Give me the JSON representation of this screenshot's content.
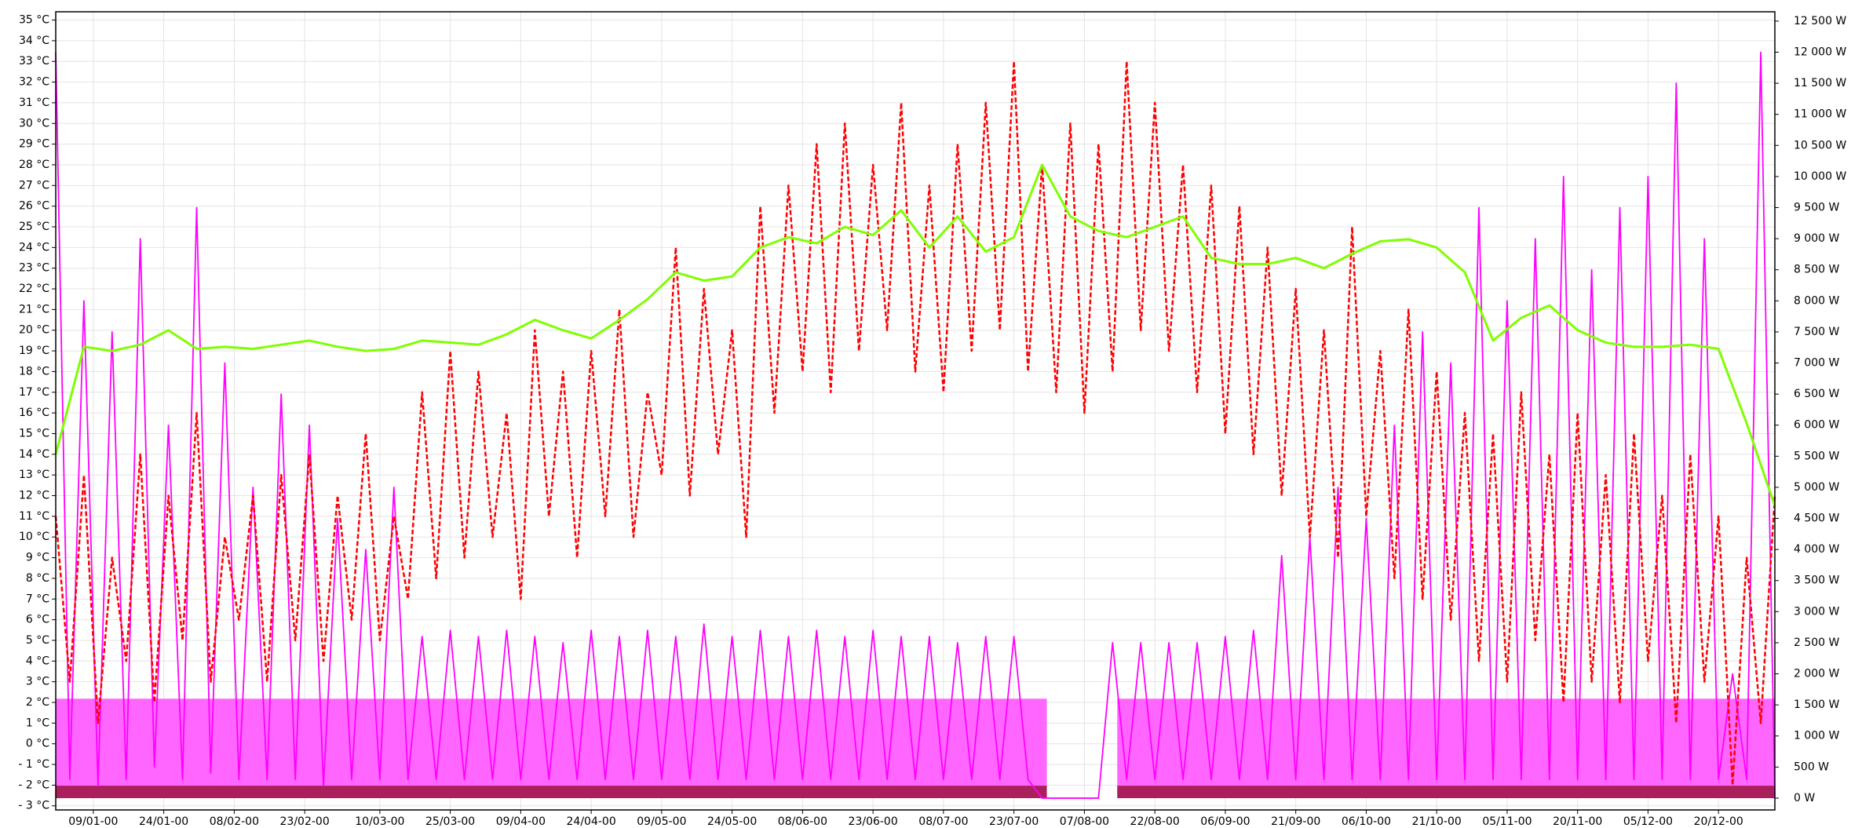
{
  "chart_data": {
    "type": "line",
    "xlim": [
      1,
      367
    ],
    "xticks": [
      {
        "value": 9,
        "label": "09/01-00"
      },
      {
        "value": 24,
        "label": "24/01-00"
      },
      {
        "value": 39,
        "label": "08/02-00"
      },
      {
        "value": 54,
        "label": "23/02-00"
      },
      {
        "value": 70,
        "label": "10/03-00"
      },
      {
        "value": 85,
        "label": "25/03-00"
      },
      {
        "value": 100,
        "label": "09/04-00"
      },
      {
        "value": 115,
        "label": "24/04-00"
      },
      {
        "value": 130,
        "label": "09/05-00"
      },
      {
        "value": 145,
        "label": "24/05-00"
      },
      {
        "value": 160,
        "label": "08/06-00"
      },
      {
        "value": 175,
        "label": "23/06-00"
      },
      {
        "value": 190,
        "label": "08/07-00"
      },
      {
        "value": 205,
        "label": "23/07-00"
      },
      {
        "value": 220,
        "label": "07/08-00"
      },
      {
        "value": 235,
        "label": "22/08-00"
      },
      {
        "value": 250,
        "label": "06/09-00"
      },
      {
        "value": 265,
        "label": "21/09-00"
      },
      {
        "value": 280,
        "label": "06/10-00"
      },
      {
        "value": 295,
        "label": "21/10-00"
      },
      {
        "value": 310,
        "label": "05/11-00"
      },
      {
        "value": 325,
        "label": "20/11-00"
      },
      {
        "value": 340,
        "label": "05/12-00"
      },
      {
        "value": 355,
        "label": "20/12-00"
      }
    ],
    "ylim": [
      -3.2,
      35.4
    ],
    "yticks": [
      {
        "value": -3,
        "label": "- 3 °C"
      },
      {
        "value": -2,
        "label": "- 2 °C"
      },
      {
        "value": -1,
        "label": "- 1 °C"
      },
      {
        "value": 0,
        "label": "0 °C"
      },
      {
        "value": 1,
        "label": "1 °C"
      },
      {
        "value": 2,
        "label": "2 °C"
      },
      {
        "value": 3,
        "label": "3 °C"
      },
      {
        "value": 4,
        "label": "4 °C"
      },
      {
        "value": 5,
        "label": "5 °C"
      },
      {
        "value": 6,
        "label": "6 °C"
      },
      {
        "value": 7,
        "label": "7 °C"
      },
      {
        "value": 8,
        "label": "8 °C"
      },
      {
        "value": 9,
        "label": "9 °C"
      },
      {
        "value": 10,
        "label": "10 °C"
      },
      {
        "value": 11,
        "label": "11 °C"
      },
      {
        "value": 12,
        "label": "12 °C"
      },
      {
        "value": 13,
        "label": "13 °C"
      },
      {
        "value": 14,
        "label": "14 °C"
      },
      {
        "value": 15,
        "label": "15 °C"
      },
      {
        "value": 16,
        "label": "16 °C"
      },
      {
        "value": 17,
        "label": "17 °C"
      },
      {
        "value": 18,
        "label": "18 °C"
      },
      {
        "value": 19,
        "label": "19 °C"
      },
      {
        "value": 20,
        "label": "20 °C"
      },
      {
        "value": 21,
        "label": "21 °C"
      },
      {
        "value": 22,
        "label": "22 °C"
      },
      {
        "value": 23,
        "label": "23 °C"
      },
      {
        "value": 24,
        "label": "24 °C"
      },
      {
        "value": 25,
        "label": "25 °C"
      },
      {
        "value": 26,
        "label": "26 °C"
      },
      {
        "value": 27,
        "label": "27 °C"
      },
      {
        "value": 28,
        "label": "28 °C"
      },
      {
        "value": 29,
        "label": "29 °C"
      },
      {
        "value": 30,
        "label": "30 °C"
      },
      {
        "value": 31,
        "label": "31 °C"
      },
      {
        "value": 32,
        "label": "32 °C"
      },
      {
        "value": 33,
        "label": "33 °C"
      },
      {
        "value": 34,
        "label": "34 °C"
      },
      {
        "value": 35,
        "label": "35 °C"
      }
    ],
    "y2lim": [
      -190,
      12650
    ],
    "y2ticks": [
      {
        "value": 0,
        "label": "0 W"
      },
      {
        "value": 500,
        "label": "500 W"
      },
      {
        "value": 1000,
        "label": "1 000 W"
      },
      {
        "value": 1500,
        "label": "1 500 W"
      },
      {
        "value": 2000,
        "label": "2 000 W"
      },
      {
        "value": 2500,
        "label": "2 500 W"
      },
      {
        "value": 3000,
        "label": "3 000 W"
      },
      {
        "value": 3500,
        "label": "3 500 W"
      },
      {
        "value": 4000,
        "label": "4 000 W"
      },
      {
        "value": 4500,
        "label": "4 500 W"
      },
      {
        "value": 5000,
        "label": "5 000 W"
      },
      {
        "value": 5500,
        "label": "5 500 W"
      },
      {
        "value": 6000,
        "label": "6 000 W"
      },
      {
        "value": 6500,
        "label": "6 500 W"
      },
      {
        "value": 7000,
        "label": "7 000 W"
      },
      {
        "value": 7500,
        "label": "7 500 W"
      },
      {
        "value": 8000,
        "label": "8 000 W"
      },
      {
        "value": 8500,
        "label": "8 500 W"
      },
      {
        "value": 9000,
        "label": "9 000 W"
      },
      {
        "value": 9500,
        "label": "9 500 W"
      },
      {
        "value": 10000,
        "label": "10 000 W"
      },
      {
        "value": 10500,
        "label": "10 500 W"
      },
      {
        "value": 11000,
        "label": "11 000 W"
      },
      {
        "value": 11500,
        "label": "11 500 W"
      },
      {
        "value": 12000,
        "label": "12 000 W"
      },
      {
        "value": 12500,
        "label": "12 500 W"
      }
    ],
    "grid": true,
    "x": [
      1,
      4,
      7,
      10,
      13,
      16,
      19,
      22,
      25,
      28,
      31,
      34,
      37,
      40,
      43,
      46,
      49,
      52,
      55,
      58,
      61,
      64,
      67,
      70,
      73,
      76,
      79,
      82,
      85,
      88,
      91,
      94,
      97,
      100,
      103,
      106,
      109,
      112,
      115,
      118,
      121,
      124,
      127,
      130,
      133,
      136,
      139,
      142,
      145,
      148,
      151,
      154,
      157,
      160,
      163,
      166,
      169,
      172,
      175,
      178,
      181,
      184,
      187,
      190,
      193,
      196,
      199,
      202,
      205,
      208,
      211,
      214,
      217,
      220,
      223,
      226,
      229,
      232,
      235,
      238,
      241,
      244,
      247,
      250,
      253,
      256,
      259,
      262,
      265,
      268,
      271,
      274,
      277,
      280,
      283,
      286,
      289,
      292,
      295,
      298,
      301,
      304,
      307,
      310,
      313,
      316,
      319,
      322,
      325,
      328,
      331,
      334,
      337,
      340,
      343,
      346,
      349,
      352,
      355,
      358,
      361,
      364,
      367
    ],
    "series": [
      {
        "color": "#ff55ff",
        "axis": "y2",
        "fill": true,
        "x": [
          1,
          212,
          220,
          227,
          367
        ],
        "values": [
          1600,
          1600,
          null,
          1600,
          1600
        ]
      },
      {
        "color": "#a0184a",
        "axis": "y2",
        "fill": true,
        "x": [
          1,
          212,
          220,
          227,
          367
        ],
        "values": [
          200,
          200,
          null,
          200,
          200
        ]
      },
      {
        "color": "#ff00ff",
        "axis": "y2",
        "values": [
          12000,
          300,
          8000,
          200,
          7500,
          300,
          9000,
          500,
          6000,
          300,
          9500,
          400,
          7000,
          300,
          5000,
          300,
          6500,
          300,
          6000,
          200,
          4500,
          300,
          4000,
          300,
          5000,
          300,
          2600,
          300,
          2700,
          300,
          2600,
          300,
          2700,
          300,
          2600,
          300,
          2500,
          300,
          2700,
          300,
          2600,
          300,
          2700,
          300,
          2600,
          300,
          2800,
          300,
          2600,
          300,
          2700,
          300,
          2600,
          300,
          2700,
          300,
          2600,
          300,
          2700,
          300,
          2600,
          300,
          2600,
          300,
          2500,
          300,
          2600,
          300,
          2600,
          300,
          0,
          0,
          0,
          0,
          0,
          2500,
          300,
          2500,
          300,
          2500,
          300,
          2500,
          300,
          2600,
          300,
          2700,
          300,
          3900,
          300,
          4200,
          300,
          5000,
          300,
          4500,
          300,
          6000,
          300,
          7500,
          300,
          7000,
          300,
          9500,
          300,
          8000,
          300,
          9000,
          300,
          10000,
          300,
          8500,
          300,
          9500,
          300,
          10000,
          300,
          11500,
          300,
          9000,
          300,
          2000,
          300,
          12000,
          0
        ]
      },
      {
        "color": "#ff0000",
        "axis": "y",
        "dashed": true,
        "values": [
          11,
          3,
          13,
          1,
          9,
          4,
          14,
          2,
          12,
          5,
          16,
          3,
          10,
          6,
          12,
          3,
          13,
          5,
          14,
          4,
          12,
          6,
          15,
          5,
          11,
          7,
          17,
          8,
          19,
          9,
          18,
          10,
          16,
          7,
          20,
          11,
          18,
          9,
          19,
          11,
          21,
          10,
          17,
          13,
          24,
          12,
          22,
          14,
          20,
          10,
          26,
          16,
          27,
          18,
          29,
          17,
          30,
          19,
          28,
          20,
          31,
          18,
          27,
          17,
          29,
          19,
          31,
          20,
          33,
          18,
          28,
          17,
          30,
          16,
          29,
          18,
          33,
          20,
          31,
          19,
          28,
          17,
          27,
          15,
          26,
          14,
          24,
          12,
          22,
          10,
          20,
          9,
          25,
          11,
          19,
          8,
          21,
          7,
          18,
          6,
          16,
          4,
          15,
          3,
          17,
          5,
          14,
          2,
          16,
          3,
          13,
          2,
          15,
          4,
          12,
          1,
          14,
          3,
          11,
          -2,
          9,
          1,
          12
        ]
      },
      {
        "color": "#7fff00",
        "axis": "y",
        "x": [
          1,
          7,
          13,
          19,
          25,
          31,
          37,
          43,
          49,
          55,
          61,
          67,
          73,
          79,
          85,
          91,
          97,
          103,
          109,
          115,
          121,
          127,
          133,
          139,
          145,
          151,
          157,
          163,
          169,
          175,
          181,
          187,
          193,
          199,
          205,
          211,
          217,
          223,
          229,
          235,
          241,
          247,
          253,
          259,
          265,
          271,
          277,
          283,
          289,
          295,
          301,
          307,
          313,
          319,
          325,
          331,
          337,
          343,
          349,
          355,
          361,
          367
        ],
        "values": [
          14,
          19.2,
          19,
          19.3,
          20,
          19.1,
          19.2,
          19.1,
          19.3,
          19.5,
          19.2,
          19,
          19.1,
          19.5,
          19.4,
          19.3,
          19.8,
          20.5,
          20,
          19.6,
          20.5,
          21.5,
          22.8,
          22.4,
          22.6,
          24,
          24.5,
          24.2,
          25,
          24.6,
          25.8,
          24,
          25.5,
          23.8,
          24.5,
          28,
          25.5,
          24.8,
          24.5,
          25,
          25.5,
          23.5,
          23.2,
          23.2,
          23.5,
          23,
          23.7,
          24.3,
          24.4,
          24,
          22.8,
          19.5,
          20.6,
          21.2,
          20,
          19.4,
          19.2,
          19.2,
          19.3,
          19.1,
          15.5,
          11.5
        ]
      }
    ]
  }
}
